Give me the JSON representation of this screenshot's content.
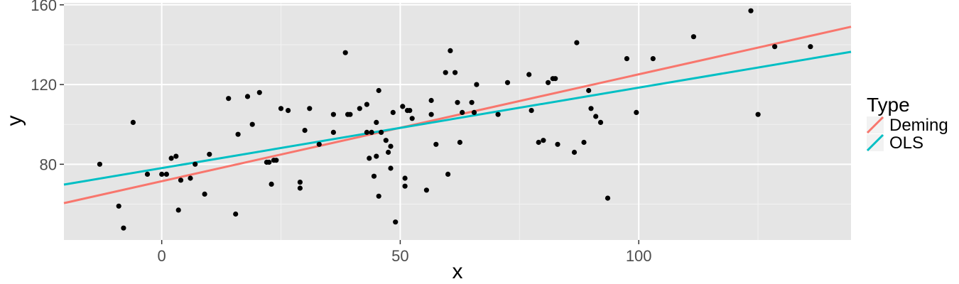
{
  "chart_data": {
    "type": "scatter",
    "xlabel": "x",
    "ylabel": "y",
    "xlim": [
      -20.5,
      144.5
    ],
    "ylim": [
      42,
      161
    ],
    "x_ticks": [
      0,
      50,
      100
    ],
    "y_ticks": [
      80,
      120,
      160
    ],
    "grid": true,
    "legend": {
      "title": "Type",
      "placement": "right"
    },
    "points": [
      {
        "x": -13,
        "y": 80
      },
      {
        "x": -9,
        "y": 59
      },
      {
        "x": -8,
        "y": 48
      },
      {
        "x": -6,
        "y": 101
      },
      {
        "x": -3,
        "y": 75
      },
      {
        "x": 0,
        "y": 75
      },
      {
        "x": 1,
        "y": 75
      },
      {
        "x": 2,
        "y": 83
      },
      {
        "x": 3,
        "y": 84
      },
      {
        "x": 3.5,
        "y": 57
      },
      {
        "x": 4,
        "y": 72
      },
      {
        "x": 6,
        "y": 73
      },
      {
        "x": 7,
        "y": 80
      },
      {
        "x": 9,
        "y": 65
      },
      {
        "x": 10,
        "y": 85
      },
      {
        "x": 14,
        "y": 113
      },
      {
        "x": 15.5,
        "y": 55
      },
      {
        "x": 16,
        "y": 95
      },
      {
        "x": 18,
        "y": 114
      },
      {
        "x": 19,
        "y": 100
      },
      {
        "x": 20.5,
        "y": 116
      },
      {
        "x": 22,
        "y": 81
      },
      {
        "x": 22.5,
        "y": 81
      },
      {
        "x": 23,
        "y": 70
      },
      {
        "x": 23.5,
        "y": 82
      },
      {
        "x": 24,
        "y": 82
      },
      {
        "x": 25,
        "y": 108
      },
      {
        "x": 26.5,
        "y": 107
      },
      {
        "x": 29,
        "y": 71
      },
      {
        "x": 29,
        "y": 68
      },
      {
        "x": 30,
        "y": 97
      },
      {
        "x": 31,
        "y": 108
      },
      {
        "x": 33,
        "y": 90
      },
      {
        "x": 36,
        "y": 105
      },
      {
        "x": 36,
        "y": 96
      },
      {
        "x": 38.5,
        "y": 136
      },
      {
        "x": 39,
        "y": 105
      },
      {
        "x": 39.5,
        "y": 105
      },
      {
        "x": 41.5,
        "y": 108
      },
      {
        "x": 43,
        "y": 110
      },
      {
        "x": 43,
        "y": 96
      },
      {
        "x": 43.5,
        "y": 83
      },
      {
        "x": 44,
        "y": 96
      },
      {
        "x": 44.5,
        "y": 74
      },
      {
        "x": 45,
        "y": 101
      },
      {
        "x": 45,
        "y": 84
      },
      {
        "x": 45.5,
        "y": 117
      },
      {
        "x": 45.5,
        "y": 64
      },
      {
        "x": 46,
        "y": 96
      },
      {
        "x": 47,
        "y": 92
      },
      {
        "x": 47.5,
        "y": 86
      },
      {
        "x": 48,
        "y": 78
      },
      {
        "x": 48,
        "y": 89
      },
      {
        "x": 48.5,
        "y": 106
      },
      {
        "x": 49,
        "y": 51
      },
      {
        "x": 50.5,
        "y": 109
      },
      {
        "x": 51,
        "y": 73
      },
      {
        "x": 51,
        "y": 69
      },
      {
        "x": 51.5,
        "y": 107
      },
      {
        "x": 52,
        "y": 107
      },
      {
        "x": 52.5,
        "y": 103
      },
      {
        "x": 55.5,
        "y": 67
      },
      {
        "x": 56.5,
        "y": 112
      },
      {
        "x": 56.5,
        "y": 105
      },
      {
        "x": 57.5,
        "y": 90
      },
      {
        "x": 59.5,
        "y": 126
      },
      {
        "x": 60,
        "y": 75
      },
      {
        "x": 60.5,
        "y": 137
      },
      {
        "x": 61.5,
        "y": 126
      },
      {
        "x": 62,
        "y": 111
      },
      {
        "x": 62.5,
        "y": 91
      },
      {
        "x": 63,
        "y": 106
      },
      {
        "x": 65,
        "y": 111
      },
      {
        "x": 65.5,
        "y": 106
      },
      {
        "x": 66,
        "y": 120
      },
      {
        "x": 70.5,
        "y": 105
      },
      {
        "x": 72.5,
        "y": 121
      },
      {
        "x": 77,
        "y": 125
      },
      {
        "x": 77.5,
        "y": 107
      },
      {
        "x": 79,
        "y": 91
      },
      {
        "x": 80,
        "y": 92
      },
      {
        "x": 81,
        "y": 121
      },
      {
        "x": 82,
        "y": 123
      },
      {
        "x": 82.5,
        "y": 123
      },
      {
        "x": 83,
        "y": 90
      },
      {
        "x": 86.5,
        "y": 86
      },
      {
        "x": 87,
        "y": 141
      },
      {
        "x": 88.5,
        "y": 91
      },
      {
        "x": 89.5,
        "y": 117
      },
      {
        "x": 90,
        "y": 108
      },
      {
        "x": 91,
        "y": 104
      },
      {
        "x": 92,
        "y": 101
      },
      {
        "x": 93.5,
        "y": 63
      },
      {
        "x": 97.5,
        "y": 133
      },
      {
        "x": 99.5,
        "y": 106
      },
      {
        "x": 103,
        "y": 133
      },
      {
        "x": 111.5,
        "y": 144
      },
      {
        "x": 123.5,
        "y": 157
      },
      {
        "x": 125,
        "y": 105
      },
      {
        "x": 128.5,
        "y": 139
      },
      {
        "x": 136,
        "y": 139
      }
    ],
    "series": [
      {
        "name": "Deming",
        "color": "#F8766D",
        "x": [
          -20.5,
          144.5
        ],
        "y": [
          60.5,
          149.0
        ]
      },
      {
        "name": "OLS",
        "color": "#00BFC4",
        "x": [
          -20.5,
          144.5
        ],
        "y": [
          69.8,
          136.4
        ]
      }
    ]
  }
}
